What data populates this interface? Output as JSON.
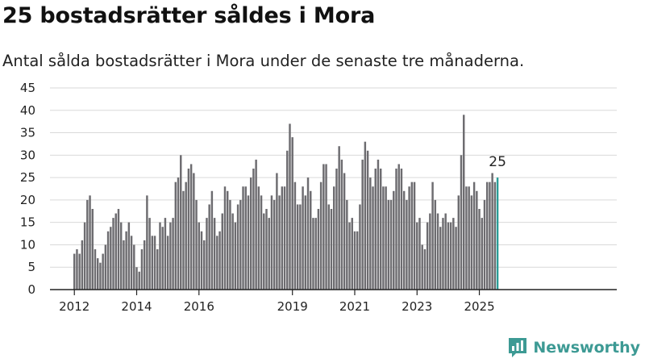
{
  "title": "25 bostadsrätter såldes i Mora",
  "subtitle": "Antal sålda bostadsrätter i Mora under de senaste tre månaderna.",
  "brand": {
    "name": "Newsworthy",
    "icon": "newsworthy-logo-icon",
    "color": "#3d9a94"
  },
  "colors": {
    "bar": "#6d6c70",
    "highlight": "#2a9d97",
    "grid": "#d9d9d9",
    "axis": "#222222"
  },
  "chart_data": {
    "type": "bar",
    "title": "25 bostadsrätter såldes i Mora",
    "subtitle": "Antal sålda bostadsrätter i Mora under de senaste tre månaderna.",
    "xlabel": "",
    "ylabel": "",
    "ylim": [
      0,
      45
    ],
    "yticks": [
      0,
      5,
      10,
      15,
      20,
      25,
      30,
      35,
      40,
      45
    ],
    "xticks": [
      "2012",
      "2014",
      "2016",
      "2019",
      "2021",
      "2023",
      "2025"
    ],
    "grid": true,
    "period": "monthly, rolling three months, 2012-01 to 2025-08",
    "highlight_label": "25",
    "values": [
      8,
      9,
      8,
      11,
      15,
      20,
      21,
      18,
      9,
      7,
      6,
      8,
      10,
      13,
      14,
      16,
      17,
      18,
      15,
      11,
      13,
      15,
      12,
      10,
      5,
      4,
      9,
      11,
      21,
      16,
      12,
      12,
      9,
      15,
      14,
      16,
      12,
      15,
      16,
      24,
      25,
      30,
      22,
      24,
      27,
      28,
      26,
      20,
      15,
      13,
      11,
      16,
      19,
      22,
      16,
      12,
      13,
      17,
      23,
      22,
      20,
      17,
      15,
      19,
      20,
      23,
      23,
      21,
      25,
      27,
      29,
      23,
      21,
      17,
      18,
      16,
      21,
      20,
      26,
      21,
      23,
      23,
      31,
      37,
      34,
      24,
      19,
      19,
      23,
      21,
      25,
      22,
      16,
      16,
      18,
      24,
      28,
      28,
      19,
      18,
      23,
      27,
      32,
      29,
      26,
      20,
      15,
      16,
      13,
      13,
      19,
      29,
      33,
      31,
      25,
      23,
      27,
      29,
      27,
      23,
      23,
      20,
      20,
      22,
      27,
      28,
      27,
      22,
      20,
      23,
      24,
      24,
      15,
      16,
      10,
      9,
      15,
      17,
      24,
      20,
      17,
      14,
      16,
      17,
      15,
      15,
      16,
      14,
      21,
      30,
      39,
      23,
      23,
      21,
      24,
      22,
      18,
      16,
      20,
      24,
      24,
      26,
      24,
      25
    ]
  }
}
